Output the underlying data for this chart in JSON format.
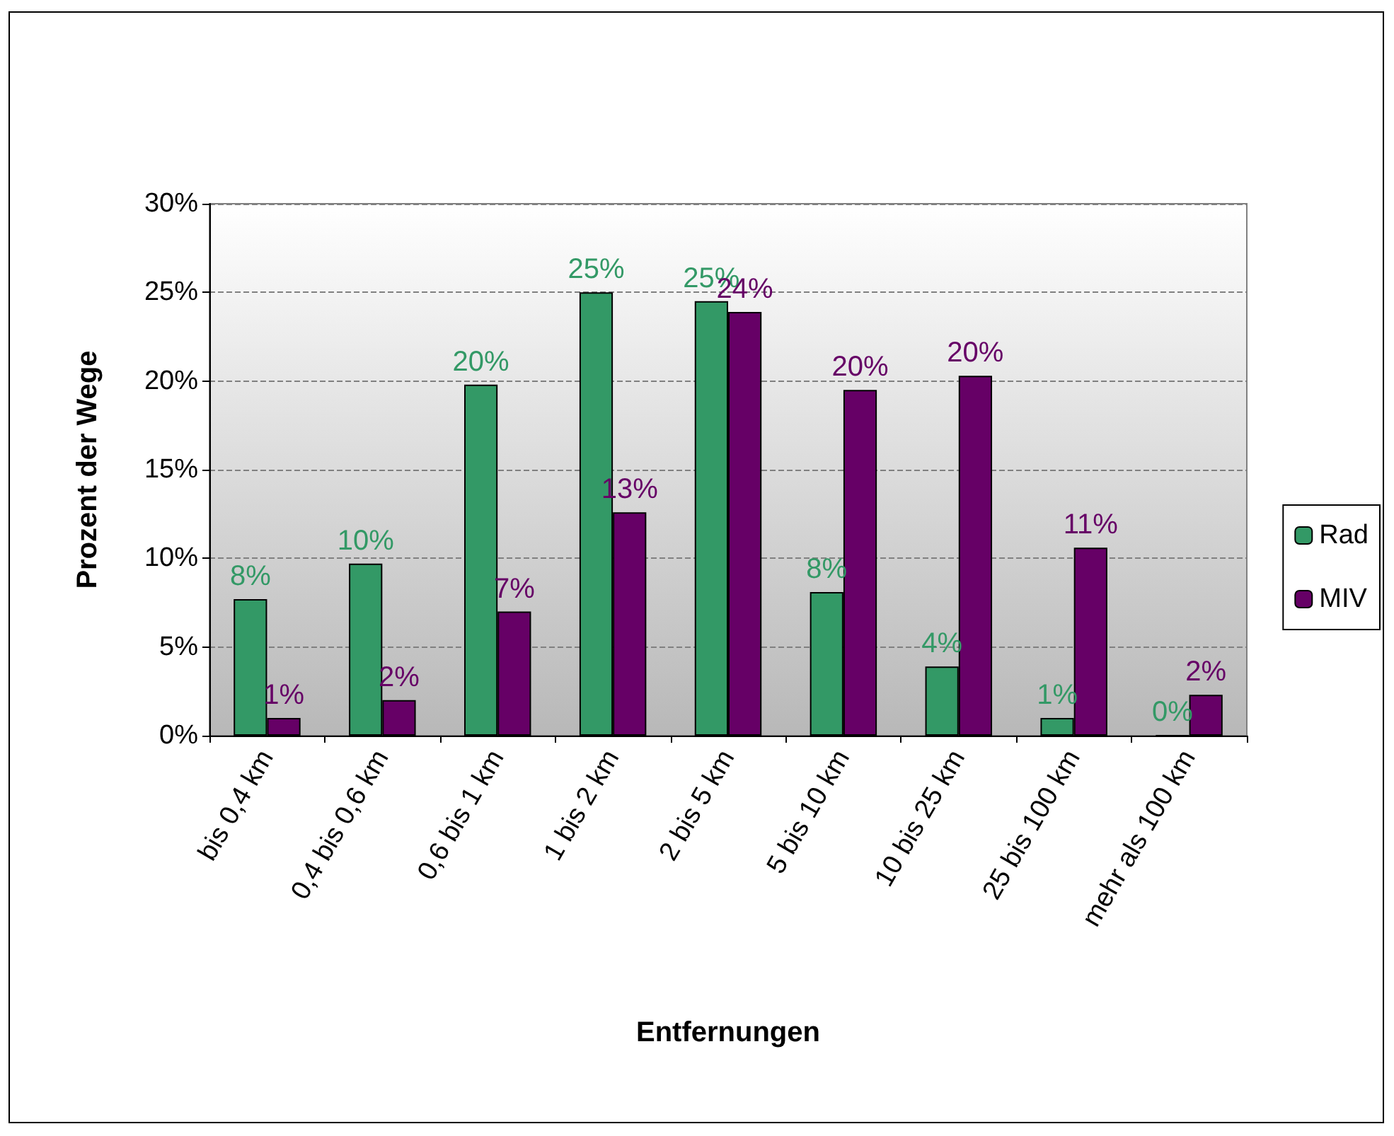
{
  "chart_data": {
    "type": "bar",
    "xlabel": "Entfernungen",
    "ylabel": "Prozent der Wege",
    "categories": [
      "bis 0,4 km",
      "0,4 bis 0,6 km",
      "0,6 bis 1 km",
      "1 bis 2 km",
      "2 bis 5 km",
      "5 bis 10 km",
      "10 bis 25 km",
      "25 bis 100 km",
      "mehr als 100 km"
    ],
    "series": [
      {
        "name": "Rad",
        "color": "#339966",
        "values": [
          7.7,
          9.7,
          19.8,
          25.0,
          24.5,
          8.1,
          3.9,
          1.0,
          0
        ],
        "value_labels": [
          "8%",
          "10%",
          "20%",
          "25%",
          "25%",
          "8%",
          "4%",
          "1%",
          "0%"
        ]
      },
      {
        "name": "MIV",
        "color": "#660066",
        "values": [
          1.0,
          2.0,
          7.0,
          12.6,
          23.9,
          19.5,
          20.3,
          10.6,
          2.3
        ],
        "value_labels": [
          "1%",
          "2%",
          "7%",
          "13%",
          "24%",
          "20%",
          "20%",
          "11%",
          "2%"
        ]
      }
    ],
    "ylim": [
      0,
      30
    ],
    "yticks": [
      {
        "value": 0,
        "label": "0%"
      },
      {
        "value": 5,
        "label": "5%"
      },
      {
        "value": 10,
        "label": "10%"
      },
      {
        "value": 15,
        "label": "15%"
      },
      {
        "value": 20,
        "label": "20%"
      },
      {
        "value": 25,
        "label": "25%"
      },
      {
        "value": 30,
        "label": "30%"
      }
    ],
    "grid": "y",
    "legend": "right"
  }
}
